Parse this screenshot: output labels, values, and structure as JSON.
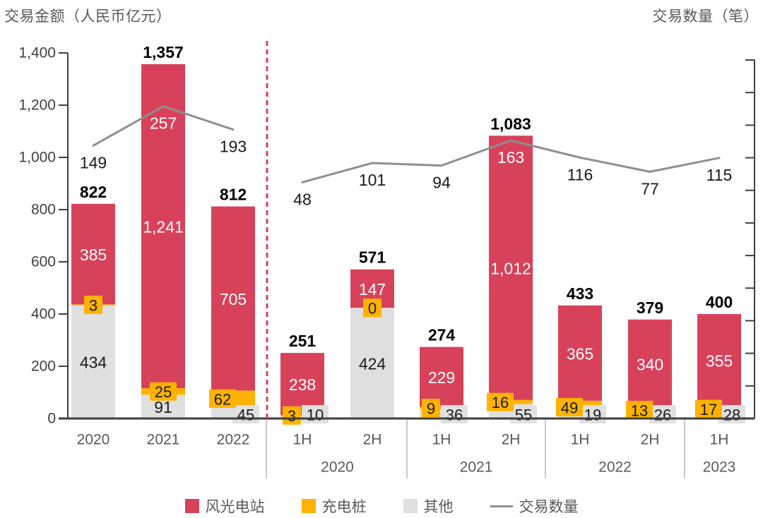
{
  "header": {
    "left_axis_title": "交易金额（人民币亿元）",
    "right_axis_title": "交易数量（笔）"
  },
  "colors": {
    "wind_solar": "#D8415A",
    "charging": "#FFB300",
    "other": "#E0E0E0",
    "line": "#8F8F8F",
    "separator": "#D8415A",
    "axis": "#3F3F3F",
    "divider": "#C9C9C9"
  },
  "legend": {
    "items": [
      {
        "label": "风光电站",
        "swatch": "square",
        "color": "#D8415A"
      },
      {
        "label": "充电桩",
        "swatch": "square",
        "color": "#FFB300"
      },
      {
        "label": "其他",
        "swatch": "square",
        "color": "#E0E0E0"
      },
      {
        "label": "交易数量",
        "swatch": "line",
        "color": "#8F8F8F"
      }
    ]
  },
  "chart_data": {
    "type": "bar",
    "subtype": "stacked-bar-with-line-dual-axis",
    "title": "",
    "left_axis": {
      "label": "交易金额（人民币亿元）",
      "range": [
        0,
        1400
      ],
      "tick_step": 200,
      "ticks": [
        "0",
        "200",
        "400",
        "600",
        "800",
        "1,000",
        "1,200",
        "1,400"
      ]
    },
    "right_axis": {
      "label": "交易数量（笔）",
      "ticks_labeled": false
    },
    "stack_order_bottom_to_top": [
      "其他",
      "充电桩",
      "风光电站"
    ],
    "sections": [
      {
        "name": "annual",
        "categories": [
          "2020",
          "2021",
          "2022"
        ],
        "series": [
          {
            "name": "风光电站",
            "values": [
              385,
              1241,
              705
            ]
          },
          {
            "name": "充电桩",
            "values": [
              3,
              25,
              62
            ]
          },
          {
            "name": "其他",
            "values": [
              434,
              91,
              45
            ]
          }
        ],
        "totals": [
          822,
          1357,
          812
        ],
        "line": {
          "name": "交易数量",
          "values": [
            149,
            257,
            193
          ]
        }
      },
      {
        "name": "half_year",
        "categories": [
          "1H",
          "2H",
          "1H",
          "2H",
          "1H",
          "2H",
          "1H"
        ],
        "group_labels": [
          {
            "label": "2020",
            "count": 2
          },
          {
            "label": "2021",
            "count": 2
          },
          {
            "label": "2022",
            "count": 2
          },
          {
            "label": "2023",
            "count": 1
          }
        ],
        "series": [
          {
            "name": "风光电站",
            "values": [
              238,
              147,
              229,
              1012,
              365,
              340,
              355
            ]
          },
          {
            "name": "充电桩",
            "values": [
              3,
              0,
              9,
              16,
              49,
              13,
              17
            ]
          },
          {
            "name": "其他",
            "values": [
              10,
              424,
              36,
              55,
              19,
              26,
              28
            ]
          }
        ],
        "totals": [
          251,
          571,
          274,
          1083,
          433,
          379,
          400
        ],
        "line": {
          "name": "交易数量",
          "values": [
            48,
            101,
            94,
            163,
            116,
            77,
            115
          ]
        }
      }
    ]
  }
}
